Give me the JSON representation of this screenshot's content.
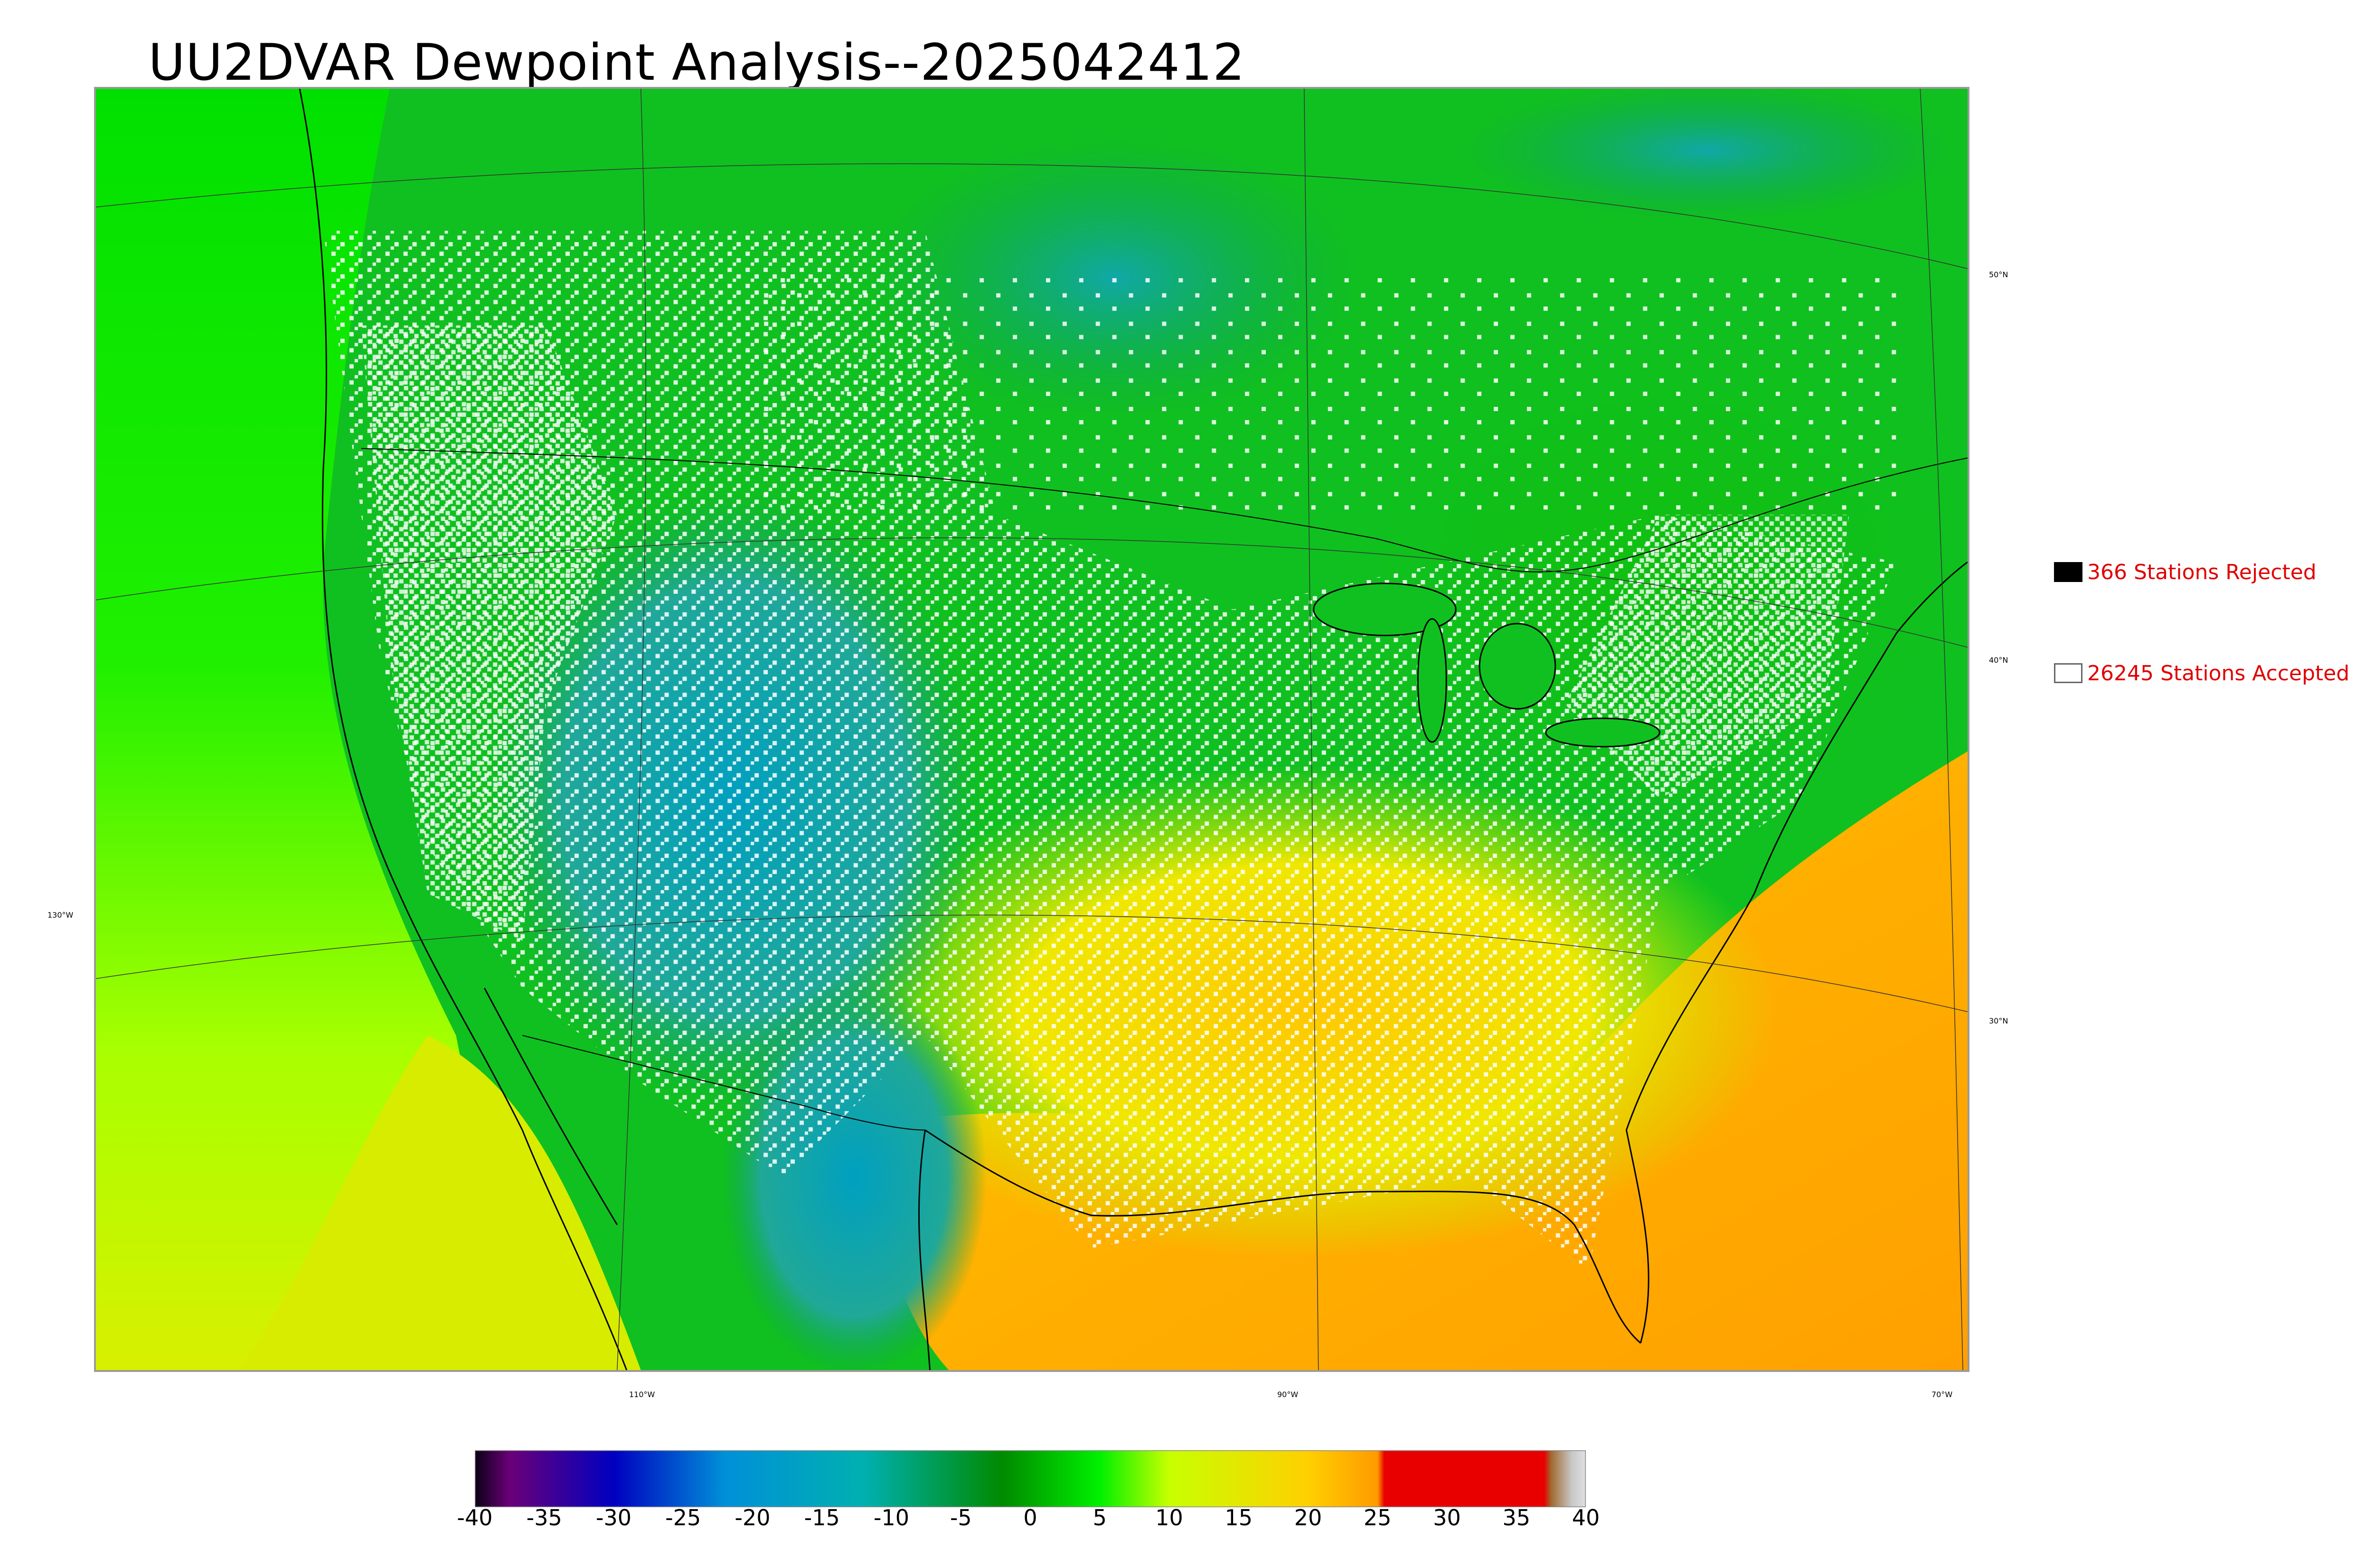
{
  "title": "UU2DVAR Dewpoint Analysis--2025042412",
  "map": {
    "lat_labels": [
      "50°N",
      "40°N",
      "30°N"
    ],
    "lon_labels": [
      "130°W",
      "110°W",
      "90°W",
      "70°W"
    ]
  },
  "legend": {
    "rejected": {
      "label": "366 Stations Rejected",
      "color": "#000000"
    },
    "accepted": {
      "label": "26245 Stations Accepted",
      "color": "#ffffff"
    }
  },
  "colorbar": {
    "tick_labels": [
      "-40",
      "-35",
      "-30",
      "-25",
      "-20",
      "-15",
      "-10",
      "-5",
      "0",
      "5",
      "10",
      "15",
      "20",
      "25",
      "30",
      "35",
      "40"
    ],
    "range": [
      -40,
      40
    ],
    "stops": [
      {
        "value": -40,
        "color": "#0a0014"
      },
      {
        "value": -37.5,
        "color": "#6a0078"
      },
      {
        "value": -30,
        "color": "#0000c0"
      },
      {
        "value": -22,
        "color": "#0090d8"
      },
      {
        "value": -12,
        "color": "#00b0b0"
      },
      {
        "value": -2,
        "color": "#008a00"
      },
      {
        "value": 5,
        "color": "#00f000"
      },
      {
        "value": 10,
        "color": "#c8ff00"
      },
      {
        "value": 20,
        "color": "#ffd000"
      },
      {
        "value": 25,
        "color": "#ff9a00"
      },
      {
        "value": 25.5,
        "color": "#e80000"
      },
      {
        "value": 37,
        "color": "#e80000"
      },
      {
        "value": 37.5,
        "color": "#a06a30"
      },
      {
        "value": 39,
        "color": "#c8c8c8"
      },
      {
        "value": 40,
        "color": "#e0e0e0"
      }
    ]
  }
}
